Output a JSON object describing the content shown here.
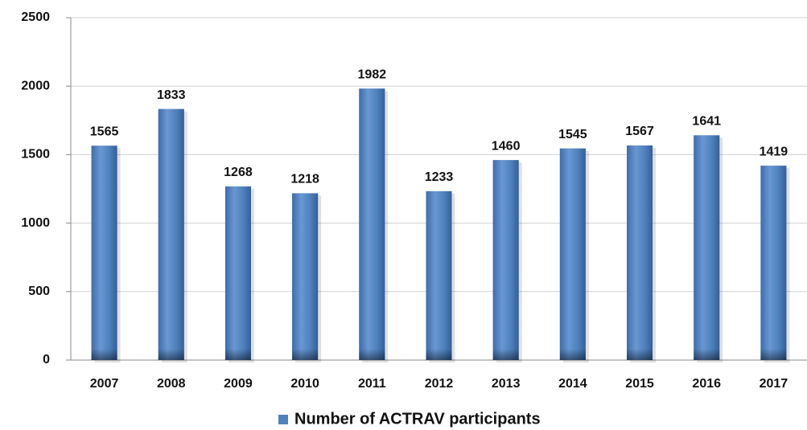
{
  "chart_data": {
    "type": "bar",
    "categories": [
      "2007",
      "2008",
      "2009",
      "2010",
      "2011",
      "2012",
      "2013",
      "2014",
      "2015",
      "2016",
      "2017"
    ],
    "series": [
      {
        "name": "Number of ACTRAV participants",
        "color": "#4f81bd",
        "values": [
          1565,
          1833,
          1268,
          1218,
          1982,
          1233,
          1460,
          1545,
          1567,
          1641,
          1419
        ]
      }
    ],
    "ylim": [
      0,
      2500
    ],
    "yticks": [
      0,
      500,
      1000,
      1500,
      2000,
      2500
    ],
    "grid": true,
    "legend": "bottom"
  }
}
